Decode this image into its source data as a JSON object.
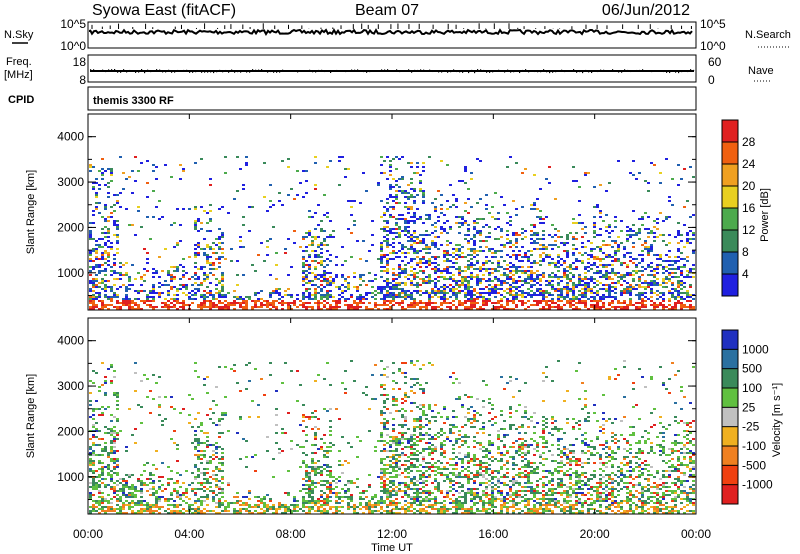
{
  "header": {
    "station": "Syowa East (fitACF)",
    "beam": "Beam 07",
    "date": "06/Jun/2012"
  },
  "noise_panel": {
    "left_label": "N.Sky",
    "right_label": "N.Search",
    "left_ticks": [
      "10^5",
      "10^0"
    ],
    "right_ticks": [
      "10^5",
      "10^0"
    ]
  },
  "freq_panel": {
    "left_label_top": "Freq.",
    "left_label_unit": "[MHz]",
    "left_ticks": [
      "18",
      "8"
    ],
    "right_label": "Nave",
    "right_ticks": [
      "60",
      "0"
    ]
  },
  "cpid": {
    "label": "CPID",
    "text": "themis 3300 RF"
  },
  "time_axis": {
    "title": "Time UT",
    "ticks": [
      "00:00",
      "04:00",
      "08:00",
      "12:00",
      "16:00",
      "20:00",
      "00:00"
    ]
  },
  "colors": {
    "power": [
      "#2020e0",
      "#2060b0",
      "#3a8a5a",
      "#4caa4c",
      "#e8d020",
      "#f0a020",
      "#f06010",
      "#e02020"
    ],
    "velocity": [
      "#2030c0",
      "#2a70a0",
      "#3a8a5a",
      "#60c040",
      "#c0c0c0",
      "#f0b020",
      "#f08020",
      "#f04010",
      "#e02020"
    ]
  },
  "chart_data": [
    {
      "type": "heatmap",
      "name": "power",
      "ylabel": "Slant Range [km]",
      "xlabel": "Time UT",
      "ylim": [
        180,
        4500
      ],
      "yticks": [
        "1000",
        "2000",
        "3000",
        "4000"
      ],
      "colorbar_label": "Power [dB]",
      "colorbar_ticks": [
        "4",
        "8",
        "12",
        "16",
        "20",
        "24",
        "28"
      ],
      "scale": [
        0,
        32
      ]
    },
    {
      "type": "heatmap",
      "name": "velocity",
      "ylabel": "Slant Range [km]",
      "xlabel": "Time UT",
      "ylim": [
        180,
        4500
      ],
      "yticks": [
        "1000",
        "2000",
        "3000",
        "4000"
      ],
      "colorbar_label": "Velocity [m s⁻¹]",
      "colorbar_ticks": [
        "1000",
        "500",
        "100",
        "25",
        "-25",
        "-100",
        "-500",
        "-1000"
      ]
    }
  ]
}
